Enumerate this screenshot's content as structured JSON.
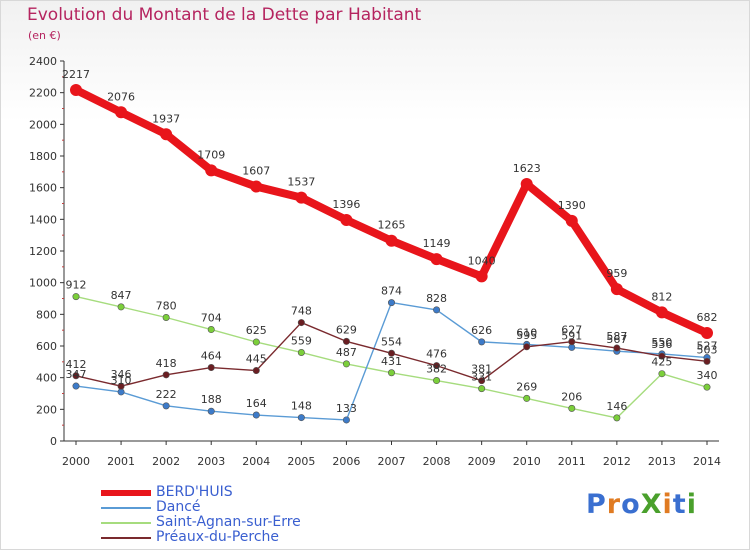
{
  "header": {
    "title": "Evolution du Montant de la Dette par Habitant",
    "unit": "(en €)"
  },
  "colors": {
    "title": "#b5245f",
    "axis": "#333333",
    "grid": "#dddddd",
    "legend_text": "#3a5fd0"
  },
  "logo": {
    "text": "ProXiti",
    "letter_colors": [
      "#3a6fd0",
      "#e07b22",
      "#3a6fd0",
      "#4aa02c",
      "#e07b22",
      "#3a6fd0",
      "#4aa02c"
    ]
  },
  "chart_data": {
    "type": "line",
    "title": "Evolution du Montant de la Dette par Habitant",
    "subtitle": "(en €)",
    "xlabel": "",
    "ylabel": "",
    "categories": [
      "2000",
      "2001",
      "2002",
      "2003",
      "2004",
      "2005",
      "2006",
      "2007",
      "2008",
      "2009",
      "2010",
      "2011",
      "2012",
      "2013",
      "2014"
    ],
    "ylim": [
      0,
      2400
    ],
    "yticks": [
      0,
      200,
      400,
      600,
      800,
      1000,
      1200,
      1400,
      1600,
      1800,
      2000,
      2200,
      2400
    ],
    "grid": false,
    "legend_position": "bottom-left",
    "series": [
      {
        "name": "BERD'HUIS",
        "color": "#e8151b",
        "point_color": "#e8151b",
        "thick": true,
        "values": [
          2217,
          2076,
          1937,
          1709,
          1607,
          1537,
          1396,
          1265,
          1149,
          1040,
          1623,
          1390,
          959,
          812,
          682
        ],
        "labels": [
          "2217",
          "2076",
          "1937",
          "1709",
          "1607",
          "1537",
          "1396",
          "1265",
          "1149",
          "1040",
          "1623",
          "1390",
          "959",
          "812",
          "682"
        ]
      },
      {
        "name": "Dancé",
        "color": "#5a9bd5",
        "point_color": "#3d7bc9",
        "thick": false,
        "values": [
          347,
          310,
          222,
          188,
          164,
          148,
          133,
          874,
          828,
          626,
          610,
          591,
          567,
          550,
          527
        ],
        "labels": [
          "347",
          "310",
          "222",
          "188",
          "164",
          "148",
          "133",
          "874",
          "828",
          "626",
          "610",
          "591",
          "567",
          "550",
          "527"
        ]
      },
      {
        "name": "Saint-Agnan-sur-Erre",
        "color": "#a6dc7e",
        "point_color": "#7bcf3a",
        "thick": false,
        "values": [
          912,
          847,
          780,
          704,
          625,
          559,
          487,
          431,
          382,
          331,
          269,
          206,
          146,
          425,
          340
        ],
        "labels": [
          "912",
          "847",
          "780",
          "704",
          "625",
          "559",
          "487",
          "431",
          "382",
          "331",
          "269",
          "206",
          "146",
          "425",
          "340"
        ]
      },
      {
        "name": "Préaux-du-Perche",
        "color": "#7a2a2e",
        "point_color": "#6a1e22",
        "thick": false,
        "values": [
          412,
          346,
          418,
          464,
          445,
          748,
          629,
          554,
          476,
          381,
          595,
          627,
          587,
          536,
          503
        ],
        "labels": [
          "412",
          "346",
          "418",
          "464",
          "445",
          "748",
          "629",
          "554",
          "476",
          "381",
          "595",
          "627",
          "587",
          "536",
          "503"
        ]
      }
    ]
  }
}
